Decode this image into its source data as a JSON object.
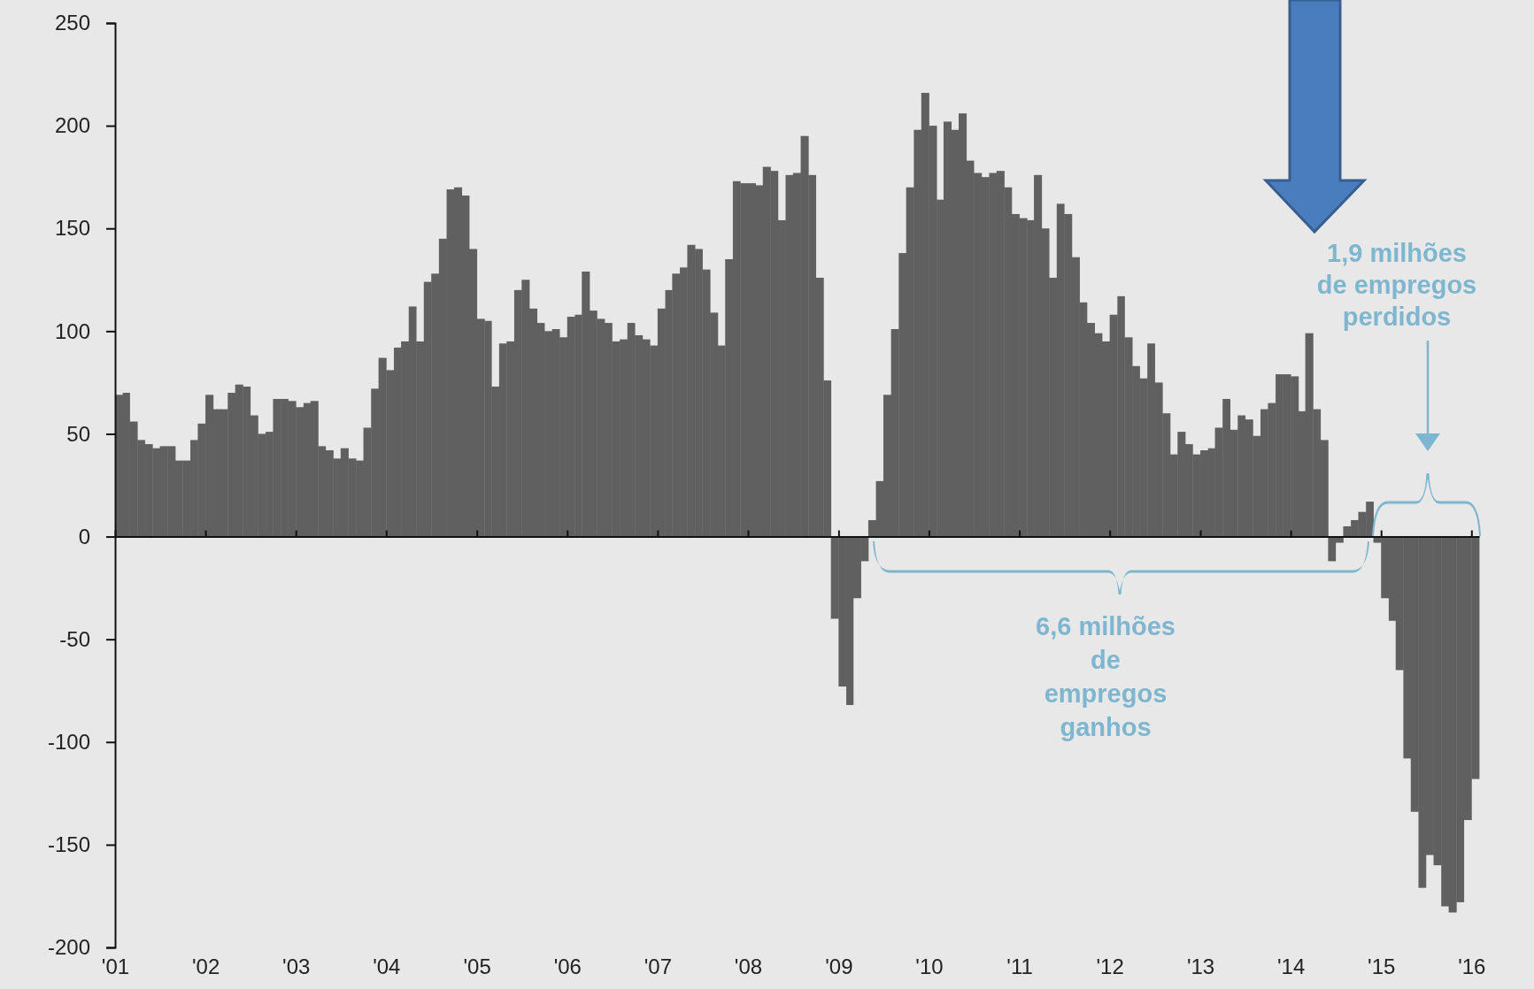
{
  "chart_data": {
    "type": "bar",
    "x": [
      "2001-01",
      "2001-02",
      "2001-03",
      "2001-04",
      "2001-05",
      "2001-06",
      "2001-07",
      "2001-08",
      "2001-09",
      "2001-10",
      "2001-11",
      "2001-12",
      "2002-01",
      "2002-02",
      "2002-03",
      "2002-04",
      "2002-05",
      "2002-06",
      "2002-07",
      "2002-08",
      "2002-09",
      "2002-10",
      "2002-11",
      "2002-12",
      "2003-01",
      "2003-02",
      "2003-03",
      "2003-04",
      "2003-05",
      "2003-06",
      "2003-07",
      "2003-08",
      "2003-09",
      "2003-10",
      "2003-11",
      "2003-12",
      "2004-01",
      "2004-02",
      "2004-03",
      "2004-04",
      "2004-05",
      "2004-06",
      "2004-07",
      "2004-08",
      "2004-09",
      "2004-10",
      "2004-11",
      "2004-12",
      "2005-01",
      "2005-02",
      "2005-03",
      "2005-04",
      "2005-05",
      "2005-06",
      "2005-07",
      "2005-08",
      "2005-09",
      "2005-10",
      "2005-11",
      "2005-12",
      "2006-01",
      "2006-02",
      "2006-03",
      "2006-04",
      "2006-05",
      "2006-06",
      "2006-07",
      "2006-08",
      "2006-09",
      "2006-10",
      "2006-11",
      "2006-12",
      "2007-01",
      "2007-02",
      "2007-03",
      "2007-04",
      "2007-05",
      "2007-06",
      "2007-07",
      "2007-08",
      "2007-09",
      "2007-10",
      "2007-11",
      "2007-12",
      "2008-01",
      "2008-02",
      "2008-03",
      "2008-04",
      "2008-05",
      "2008-06",
      "2008-07",
      "2008-08",
      "2008-09",
      "2008-10",
      "2008-11",
      "2008-12",
      "2009-01",
      "2009-02",
      "2009-03",
      "2009-04",
      "2009-05",
      "2009-06",
      "2009-07",
      "2009-08",
      "2009-09",
      "2009-10",
      "2009-11",
      "2009-12",
      "2010-01",
      "2010-02",
      "2010-03",
      "2010-04",
      "2010-05",
      "2010-06",
      "2010-07",
      "2010-08",
      "2010-09",
      "2010-10",
      "2010-11",
      "2010-12",
      "2011-01",
      "2011-02",
      "2011-03",
      "2011-04",
      "2011-05",
      "2011-06",
      "2011-07",
      "2011-08",
      "2011-09",
      "2011-10",
      "2011-11",
      "2011-12",
      "2012-01",
      "2012-02",
      "2012-03",
      "2012-04",
      "2012-05",
      "2012-06",
      "2012-07",
      "2012-08",
      "2012-09",
      "2012-10",
      "2012-11",
      "2012-12",
      "2013-01",
      "2013-02",
      "2013-03",
      "2013-04",
      "2013-05",
      "2013-06",
      "2013-07",
      "2013-08",
      "2013-09",
      "2013-10",
      "2013-11",
      "2013-12",
      "2014-01",
      "2014-02",
      "2014-03",
      "2014-04",
      "2014-05",
      "2014-06",
      "2014-07",
      "2014-08",
      "2014-09",
      "2014-10",
      "2014-11",
      "2014-12",
      "2015-01",
      "2015-02",
      "2015-03",
      "2015-04",
      "2015-05",
      "2015-06",
      "2015-07",
      "2015-08",
      "2015-09",
      "2015-10",
      "2015-11",
      "2015-12",
      "2016-01"
    ],
    "values": [
      69,
      70,
      56,
      47,
      45,
      43,
      44,
      44,
      37,
      37,
      47,
      55,
      69,
      62,
      62,
      70,
      74,
      73,
      59,
      50,
      51,
      67,
      67,
      66,
      63,
      65,
      66,
      44,
      42,
      38,
      43,
      38,
      37,
      53,
      72,
      87,
      81,
      92,
      95,
      112,
      95,
      124,
      128,
      145,
      169,
      170,
      166,
      140,
      106,
      105,
      73,
      94,
      95,
      120,
      125,
      111,
      104,
      100,
      101,
      97,
      107,
      108,
      129,
      110,
      106,
      104,
      95,
      96,
      104,
      98,
      96,
      93,
      111,
      120,
      128,
      131,
      142,
      140,
      130,
      109,
      93,
      135,
      173,
      172,
      172,
      171,
      180,
      178,
      154,
      176,
      177,
      195,
      176,
      126,
      76,
      -40,
      -73,
      -82,
      -30,
      -12,
      8,
      27,
      69,
      101,
      138,
      170,
      198,
      216,
      200,
      164,
      202,
      198,
      206,
      183,
      177,
      175,
      177,
      178,
      170,
      157,
      155,
      154,
      176,
      150,
      126,
      162,
      157,
      136,
      114,
      104,
      99,
      95,
      108,
      117,
      97,
      83,
      77,
      94,
      75,
      60,
      40,
      51,
      45,
      40,
      42,
      43,
      53,
      67,
      52,
      59,
      57,
      49,
      62,
      65,
      79,
      79,
      78,
      61,
      99,
      62,
      47,
      -12,
      -3,
      5,
      8,
      12,
      17,
      -3,
      -30,
      -41,
      -65,
      -108,
      -134,
      -171,
      -155,
      -160,
      -180,
      -183,
      -178,
      -138,
      -118
    ],
    "color": "#606060",
    "xlim": [
      "2001-01",
      "2016-02"
    ],
    "xticks": [
      {
        "value": "2001",
        "label": "'01"
      },
      {
        "value": "2002",
        "label": "'02"
      },
      {
        "value": "2003",
        "label": "'03"
      },
      {
        "value": "2004",
        "label": "'04"
      },
      {
        "value": "2005",
        "label": "'05"
      },
      {
        "value": "2006",
        "label": "'06"
      },
      {
        "value": "2007",
        "label": "'07"
      },
      {
        "value": "2008",
        "label": "'08"
      },
      {
        "value": "2009",
        "label": "'09"
      },
      {
        "value": "2010",
        "label": "'10"
      },
      {
        "value": "2011",
        "label": "'11"
      },
      {
        "value": "2012",
        "label": "'12"
      },
      {
        "value": "2013",
        "label": "'13"
      },
      {
        "value": "2014",
        "label": "'14"
      },
      {
        "value": "2015",
        "label": "'15"
      },
      {
        "value": "2016",
        "label": "'16"
      }
    ],
    "ylim": [
      -200,
      250
    ],
    "yticks": [
      -200,
      -150,
      -100,
      -50,
      0,
      50,
      100,
      150,
      200,
      250
    ],
    "annotations": [
      "6,6 milhões\nde\nempregos\nganhos",
      "1,9 milhões\nde empregos\nperdidos"
    ]
  }
}
